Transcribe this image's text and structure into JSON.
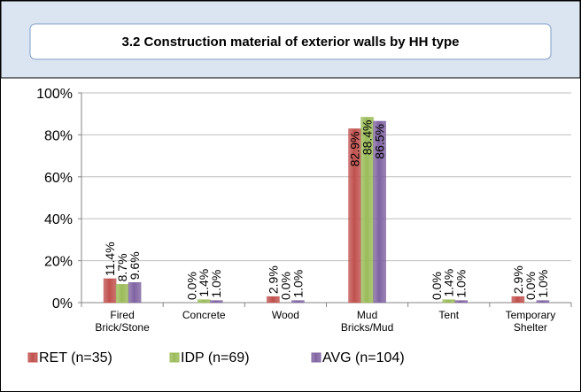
{
  "chart_data": {
    "type": "bar",
    "title": "3.2 Construction material of exterior walls by HH type",
    "categories": [
      "Fired Brick/Stone",
      "Concrete",
      "Wood",
      "Mud Bricks/Mud",
      "Tent",
      "Temporary Shelter"
    ],
    "series": [
      {
        "name": "RET (n=35)",
        "color": "#c0504d",
        "values": [
          11.4,
          0.0,
          2.9,
          82.9,
          0.0,
          2.9
        ],
        "value_labels": [
          "11.4%",
          "0.0%",
          "2.9%",
          "82.9%",
          "0.0%",
          "2.9%"
        ]
      },
      {
        "name": "IDP (n=69)",
        "color": "#9bbb59",
        "values": [
          8.7,
          1.4,
          0.0,
          88.4,
          1.4,
          0.0
        ],
        "value_labels": [
          "8.7%",
          "1.4%",
          "0.0%",
          "88.4%",
          "1.4%",
          "0.0%"
        ]
      },
      {
        "name": "AVG (n=104)",
        "color": "#8064a2",
        "values": [
          9.6,
          1.0,
          1.0,
          86.5,
          1.0,
          1.0
        ],
        "value_labels": [
          "9.6%",
          "1.0%",
          "1.0%",
          "86.5%",
          "1.0%",
          "1.0%"
        ]
      }
    ],
    "ylim": [
      0,
      100
    ],
    "yticks": [
      {
        "value": 0,
        "label": "0%"
      },
      {
        "value": 20,
        "label": "20%"
      },
      {
        "value": 40,
        "label": "40%"
      },
      {
        "value": 60,
        "label": "60%"
      },
      {
        "value": 80,
        "label": "80%"
      },
      {
        "value": 100,
        "label": "100%"
      }
    ],
    "grid": true,
    "legend": "bottom"
  }
}
